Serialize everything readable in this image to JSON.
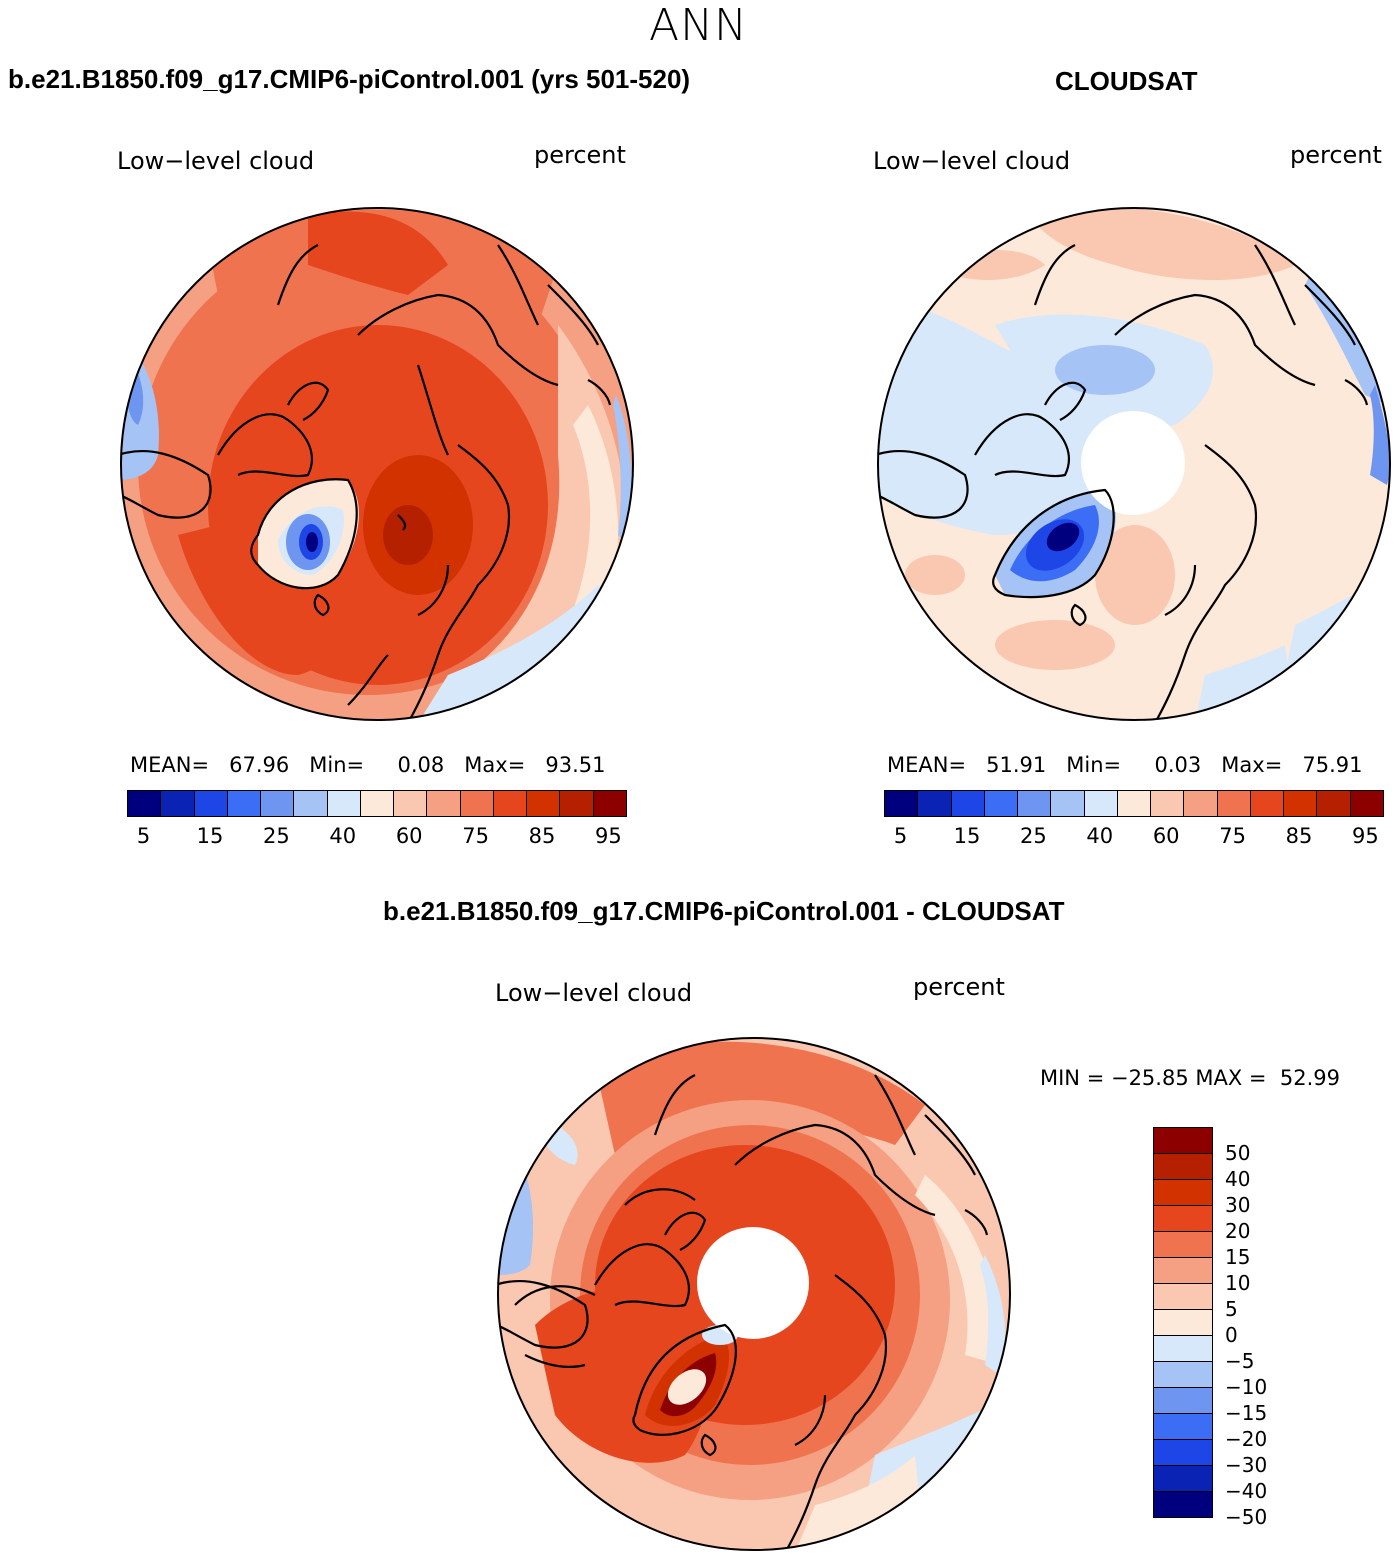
{
  "figure": {
    "title": "ANN"
  },
  "panels": [
    {
      "title": "b.e21.B1850.f09_g17.CMIP6-piControl.001 (yrs 501-520)",
      "variable": "Low−level cloud",
      "units": "percent",
      "mean_label": "MEAN=",
      "mean": "67.96",
      "min_label": "Min=",
      "min": "0.08",
      "max_label": "Max=",
      "max": "93.51",
      "pole_gap": false
    },
    {
      "title": "CLOUDSAT",
      "variable": "Low−level cloud",
      "units": "percent",
      "mean_label": "MEAN=",
      "mean": "51.91",
      "min_label": "Min=",
      "min": "0.03",
      "max_label": "Max=",
      "max": "75.91",
      "pole_gap": true
    },
    {
      "title": "b.e21.B1850.f09_g17.CMIP6-piControl.001 - CLOUDSAT",
      "variable": "Low−level cloud",
      "units": "percent",
      "minmax_label": "MIN = −25.85 MAX =  52.99",
      "pole_gap": true
    }
  ],
  "colorbar_abs": {
    "ticks": [
      "5",
      "15",
      "25",
      "40",
      "60",
      "75",
      "85",
      "95"
    ],
    "colors": [
      "#00007f",
      "#0a23b4",
      "#1e46e6",
      "#3c6ef5",
      "#6e96f0",
      "#a5c3f5",
      "#d7e8fa",
      "#fde9da",
      "#fac8b0",
      "#f5a082",
      "#f07350",
      "#e6461e",
      "#d23200",
      "#b42000",
      "#8c0000"
    ]
  },
  "colorbar_diff": {
    "ticks": [
      "50",
      "40",
      "30",
      "20",
      "15",
      "10",
      "5",
      "0",
      "−5",
      "−10",
      "−15",
      "−20",
      "−30",
      "−40",
      "−50"
    ],
    "colors": [
      "#8c0000",
      "#b42000",
      "#d23200",
      "#e6461e",
      "#f07350",
      "#f5a082",
      "#fac8b0",
      "#fde9da",
      "#d7e8fa",
      "#a5c3f5",
      "#6e96f0",
      "#3c6ef5",
      "#1e46e6",
      "#0a23b4",
      "#00007f"
    ]
  },
  "chart_data": [
    {
      "type": "heatmap",
      "projection": "north polar stereographic",
      "title": "b.e21.B1850.f09_g17.CMIP6-piControl.001 (yrs 501-520)",
      "variable": "Low-level cloud",
      "units": "percent",
      "mean": 67.96,
      "min": 0.08,
      "max": 93.51,
      "levels": [
        5,
        10,
        15,
        20,
        25,
        30,
        40,
        50,
        60,
        70,
        75,
        80,
        85,
        90,
        95
      ]
    },
    {
      "type": "heatmap",
      "projection": "north polar stereographic",
      "title": "CLOUDSAT",
      "variable": "Low-level cloud",
      "units": "percent",
      "mean": 51.91,
      "min": 0.03,
      "max": 75.91,
      "levels": [
        5,
        10,
        15,
        20,
        25,
        30,
        40,
        50,
        60,
        70,
        75,
        80,
        85,
        90,
        95
      ]
    },
    {
      "type": "heatmap",
      "projection": "north polar stereographic",
      "title": "b.e21.B1850.f09_g17.CMIP6-piControl.001 - CLOUDSAT",
      "variable": "Low-level cloud",
      "units": "percent",
      "min": -25.85,
      "max": 52.99,
      "levels": [
        -50,
        -40,
        -30,
        -20,
        -15,
        -10,
        -5,
        0,
        5,
        10,
        15,
        20,
        30,
        40,
        50
      ]
    }
  ]
}
